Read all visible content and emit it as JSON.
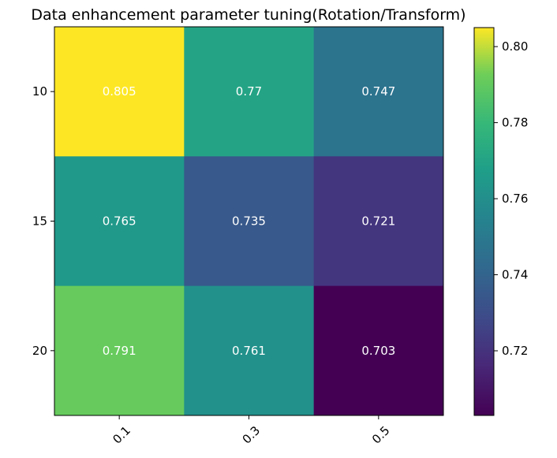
{
  "chart_data": {
    "type": "heatmap",
    "title": "Data enhancement parameter tuning(Rotation/Transform)",
    "xlabel": "",
    "ylabel": "",
    "x_categories": [
      "0.1",
      "0.3",
      "0.5"
    ],
    "y_categories": [
      "10",
      "15",
      "20"
    ],
    "values": [
      [
        0.805,
        0.77,
        0.747
      ],
      [
        0.765,
        0.735,
        0.721
      ],
      [
        0.791,
        0.761,
        0.703
      ]
    ],
    "value_labels": [
      [
        "0.805",
        "0.77",
        "0.747"
      ],
      [
        "0.765",
        "0.735",
        "0.721"
      ],
      [
        "0.791",
        "0.761",
        "0.703"
      ]
    ],
    "colormap": "viridis",
    "colorbar": {
      "vmin": 0.703,
      "vmax": 0.805,
      "ticks": [
        "0.72",
        "0.74",
        "0.76",
        "0.78",
        "0.80"
      ]
    },
    "x_tick_rotation_deg": 45,
    "grid": false
  }
}
